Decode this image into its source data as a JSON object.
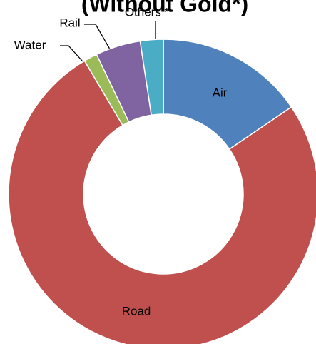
{
  "chart_data": {
    "type": "pie",
    "title": "(Without Gold*)",
    "categories": [
      "Air",
      "Road",
      "Water",
      "Rail",
      "Others *"
    ],
    "values": [
      15.5,
      76,
      1.4,
      4.7,
      2.4
    ],
    "colors": [
      "#4f81bd",
      "#c0504d",
      "#9bbb59",
      "#8064a2",
      "#4bacc6"
    ],
    "donut": true
  }
}
